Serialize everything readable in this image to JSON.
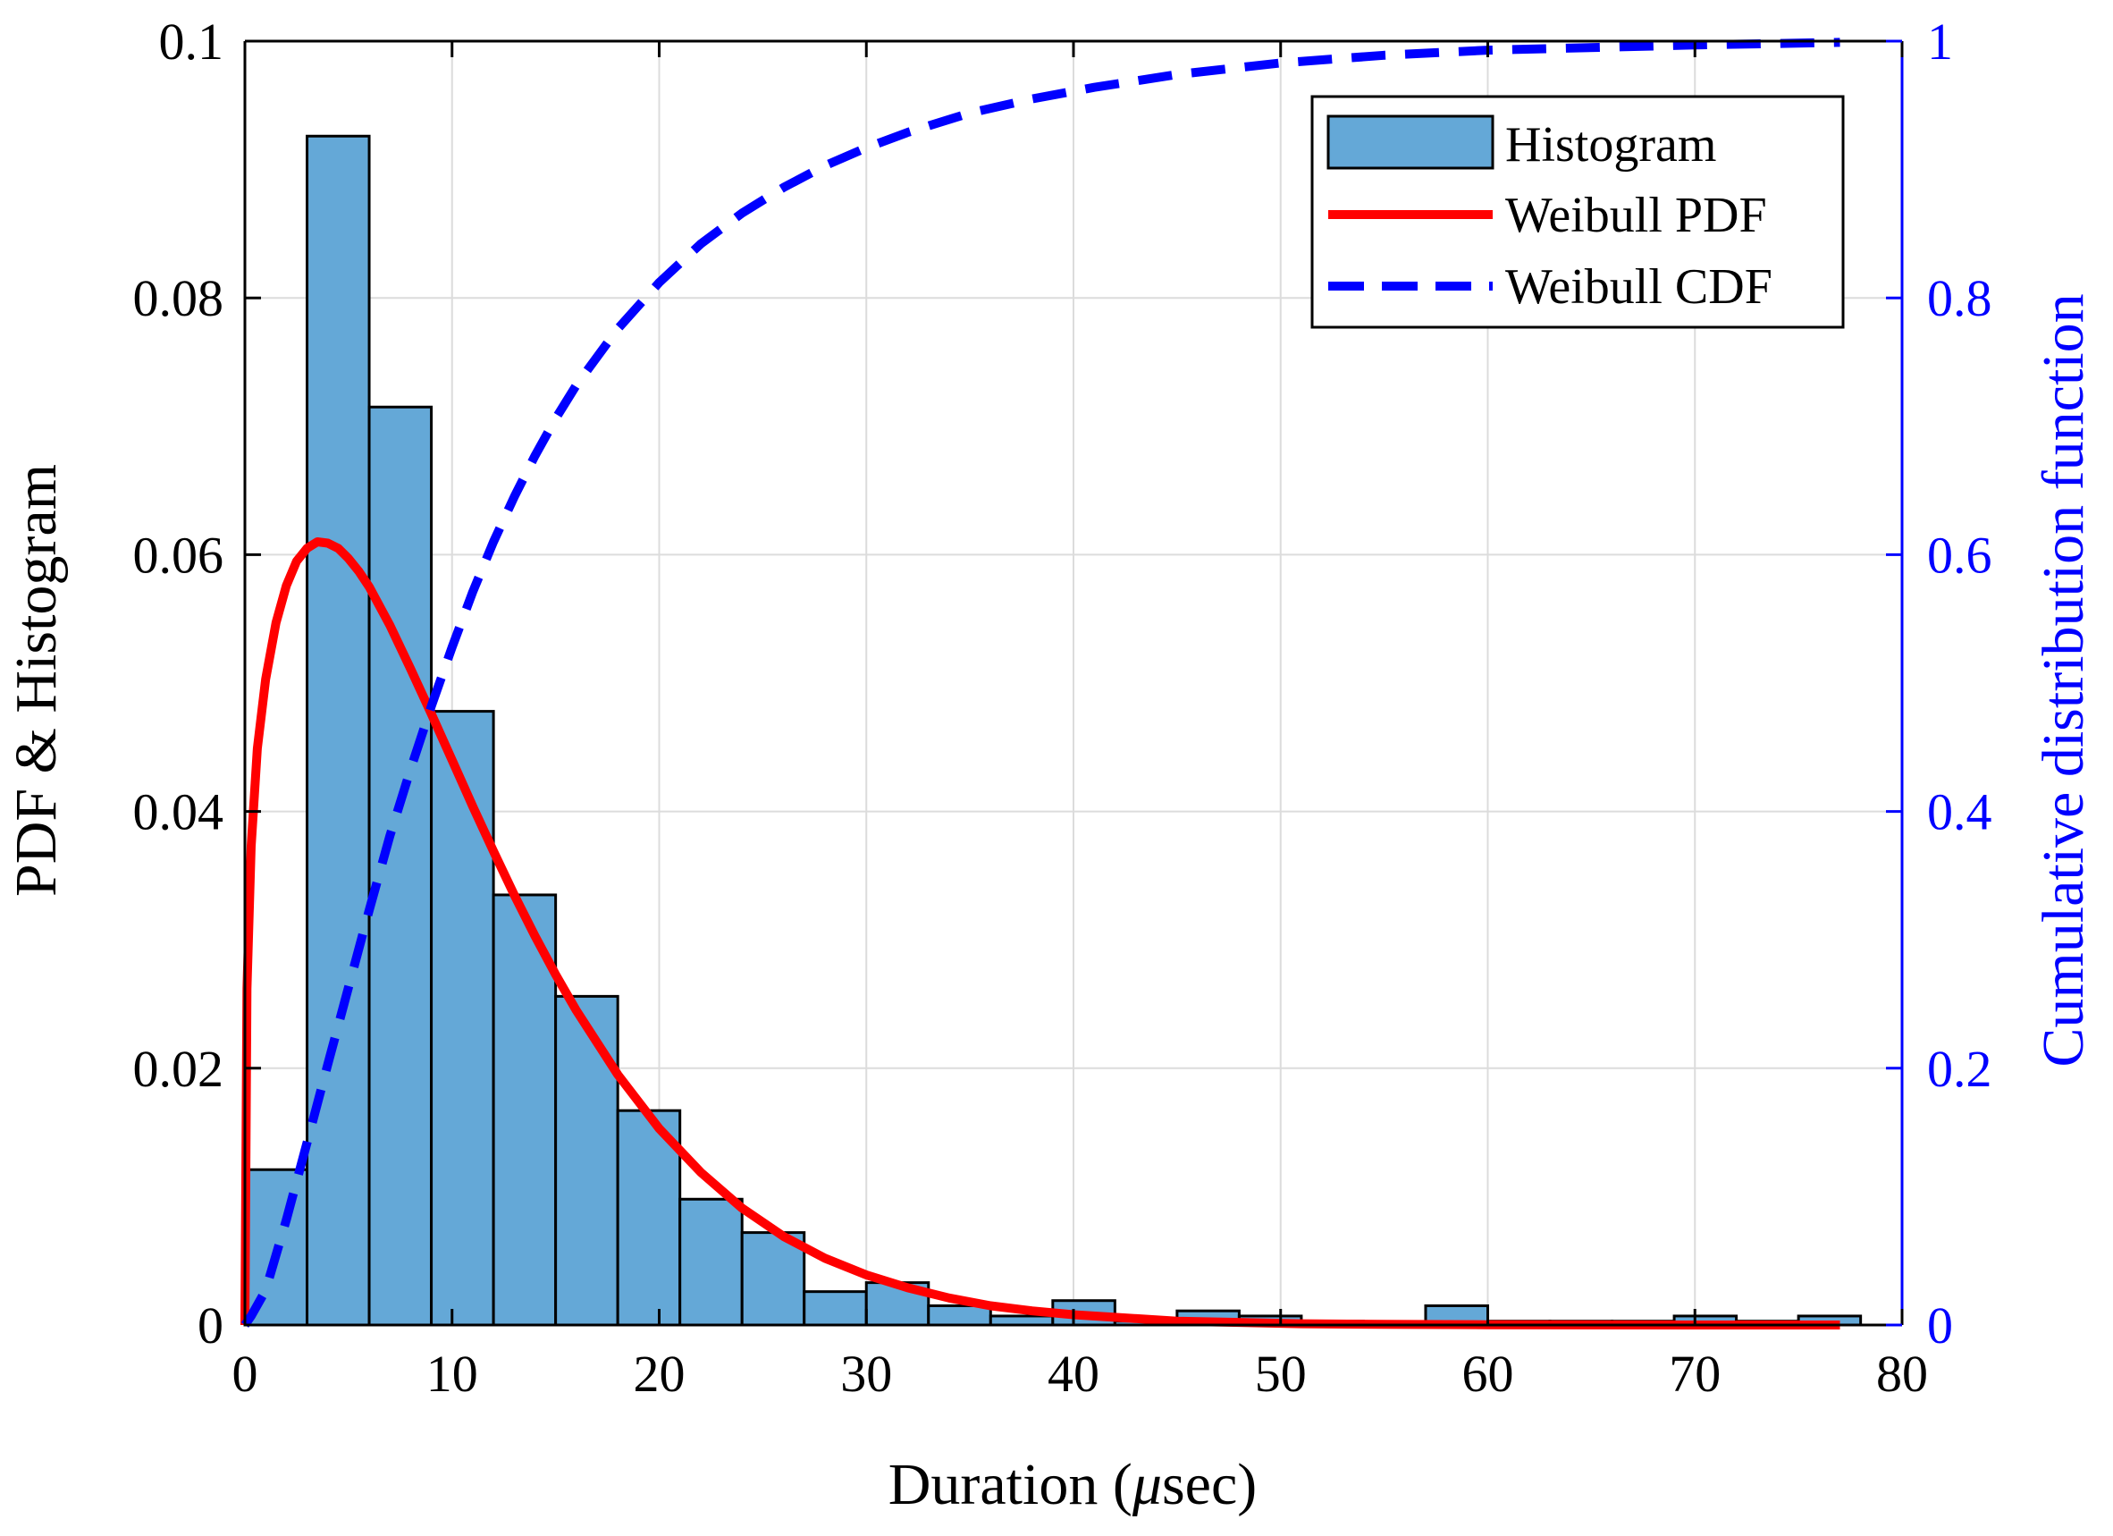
{
  "chart_data": {
    "type": "bar",
    "title": "",
    "xlabel_prefix": "Duration (",
    "xlabel_mu": "μ",
    "xlabel_suffix": "sec)",
    "ylabel": "PDF & Histogram",
    "ylabel_right": "Cumulative distribution function",
    "xlim": [
      0,
      80
    ],
    "ylim": [
      0,
      0.1
    ],
    "ylim_right": [
      0,
      1
    ],
    "xticks": [
      0,
      10,
      20,
      30,
      40,
      50,
      60,
      70,
      80
    ],
    "xtick_labels": [
      "0",
      "10",
      "20",
      "30",
      "40",
      "50",
      "60",
      "70",
      "80"
    ],
    "yticks": [
      0,
      0.02,
      0.04,
      0.06,
      0.08,
      0.1
    ],
    "ytick_labels": [
      "0",
      "0.02",
      "0.04",
      "0.06",
      "0.08",
      "0.1"
    ],
    "yticks_right": [
      0,
      0.2,
      0.4,
      0.6,
      0.8,
      1
    ],
    "ytick_labels_right": [
      "0",
      "0.2",
      "0.4",
      "0.6",
      "0.8",
      "1"
    ],
    "grid": true,
    "legend_position": "top-right",
    "histogram": {
      "name": "Histogram",
      "color": "#64a8d7",
      "edge_color": "#000000",
      "bin_edges": [
        0,
        3,
        6,
        9,
        12,
        15,
        18,
        21,
        24,
        27,
        30,
        33,
        36,
        39,
        42,
        45,
        48,
        51,
        54,
        57,
        60,
        63,
        66,
        69,
        72,
        75,
        78
      ],
      "values": [
        0.0121,
        0.0926,
        0.0715,
        0.0478,
        0.0335,
        0.0256,
        0.0167,
        0.0098,
        0.0072,
        0.0026,
        0.0033,
        0.0015,
        0.0007,
        0.0019,
        0.0003,
        0.0011,
        0.0007,
        0.0003,
        0.0,
        0.0015,
        0.0003,
        0.0003,
        0.0003,
        0.0007,
        0.0003,
        0.0007
      ]
    },
    "series": [
      {
        "name": "Weibull PDF",
        "color": "#ff0000",
        "style": "solid",
        "axis": "left",
        "x": [
          0,
          0.1,
          0.3,
          0.6,
          1,
          1.5,
          2,
          2.5,
          3,
          3.5,
          4,
          4.5,
          5,
          5.5,
          6,
          7,
          8,
          9,
          10,
          11,
          12,
          13,
          14,
          15,
          16,
          18,
          20,
          22,
          24,
          26,
          28,
          30,
          32,
          34,
          36,
          38,
          40,
          42,
          45,
          48,
          51,
          55,
          60,
          65,
          70,
          75,
          77
        ],
        "y": [
          0,
          0.0262,
          0.0373,
          0.0449,
          0.0503,
          0.0547,
          0.0576,
          0.0595,
          0.0605,
          0.061,
          0.0609,
          0.0605,
          0.0597,
          0.0587,
          0.0575,
          0.0545,
          0.0511,
          0.0476,
          0.044,
          0.0404,
          0.0369,
          0.0335,
          0.0303,
          0.0273,
          0.0245,
          0.0195,
          0.0153,
          0.0119,
          0.0091,
          0.0069,
          0.0052,
          0.0039,
          0.0029,
          0.0021,
          0.0015,
          0.0011,
          0.0008,
          0.0006,
          0.0003,
          0.0002,
          0.0001,
          5e-05,
          2e-05,
          1e-05,
          0,
          0,
          0
        ]
      },
      {
        "name": "Weibull CDF",
        "color": "#0000ff",
        "style": "dashed",
        "axis": "right",
        "x": [
          0,
          0.3,
          1,
          2,
          3,
          4,
          5,
          6,
          7,
          8,
          9,
          10,
          11,
          12,
          13,
          14,
          15,
          16,
          18,
          20,
          22,
          24,
          26,
          28,
          30,
          32,
          35,
          38,
          41,
          45,
          50,
          55,
          60,
          70,
          77
        ],
        "y": [
          0,
          0.007,
          0.027,
          0.082,
          0.142,
          0.203,
          0.263,
          0.323,
          0.381,
          0.433,
          0.482,
          0.528,
          0.571,
          0.61,
          0.645,
          0.677,
          0.706,
          0.732,
          0.776,
          0.812,
          0.842,
          0.866,
          0.886,
          0.903,
          0.917,
          0.929,
          0.944,
          0.955,
          0.964,
          0.974,
          0.983,
          0.989,
          0.993,
          0.997,
          0.999
        ]
      }
    ]
  }
}
